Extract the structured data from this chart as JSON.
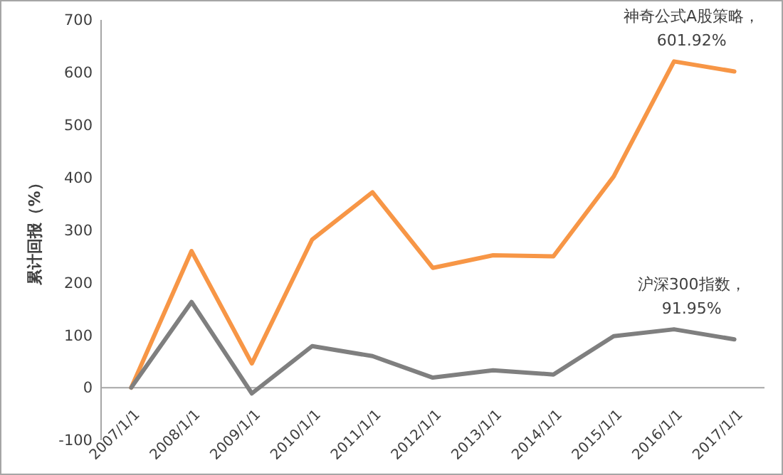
{
  "chart_data": {
    "type": "line",
    "ylabel": "累计回报（%）",
    "categories": [
      "2007/1/1",
      "2008/1/1",
      "2009/1/1",
      "2010/1/1",
      "2011/1/1",
      "2012/1/1",
      "2013/1/1",
      "2014/1/1",
      "2015/1/1",
      "2016/1/1",
      "2017/1/1"
    ],
    "series": [
      {
        "color": "#f79646",
        "values": [
          0,
          260,
          46,
          282,
          372,
          228,
          252,
          250,
          402,
          621,
          601.92
        ]
      },
      {
        "color": "#7f7f7f",
        "values": [
          0,
          163,
          -11,
          79,
          60,
          19,
          33,
          25,
          98,
          111,
          91.95
        ]
      }
    ],
    "ylim": [
      -100,
      700
    ],
    "yticks": [
      -100,
      0,
      100,
      200,
      300,
      400,
      500,
      600,
      700
    ],
    "grid": false,
    "marker": "none",
    "line_style": "solid",
    "annotations": [
      {
        "text": "神奇公式A股策略，\n601.92%",
        "x": "2017/1/1",
        "y": 601.92
      },
      {
        "text": "沪深300指数，\n91.95%",
        "x": "2017/1/1",
        "y": 91.95
      }
    ]
  }
}
